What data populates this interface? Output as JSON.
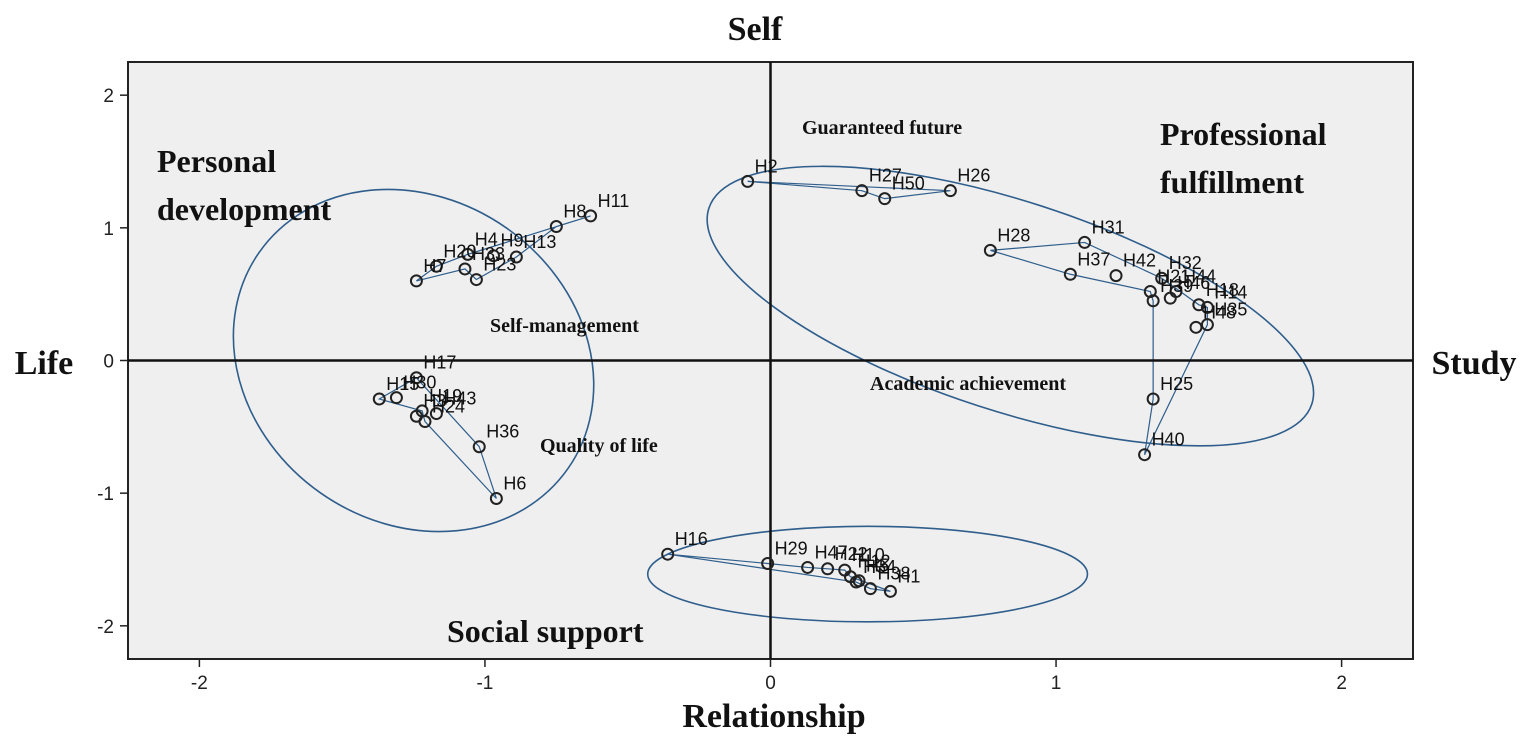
{
  "chart_data": {
    "type": "scatter",
    "xlim": [
      -2.25,
      2.25
    ],
    "ylim": [
      -2.25,
      2.25
    ],
    "x_ticks": [
      -2,
      -1,
      0,
      1,
      2
    ],
    "y_ticks": [
      2,
      1,
      0,
      -1,
      -2
    ],
    "axis_labels": {
      "top": "Self",
      "bottom": "Relationship",
      "left": "Life",
      "right": "Study"
    },
    "group_labels": [
      {
        "text": "Personal development",
        "style": "big"
      },
      {
        "text": "Professional fulfillment",
        "style": "big"
      },
      {
        "text": "Social support",
        "style": "big"
      },
      {
        "text": "Guaranteed future",
        "style": "small"
      },
      {
        "text": "Self-management",
        "style": "small"
      },
      {
        "text": "Academic achievement",
        "style": "small"
      },
      {
        "text": "Quality  of life",
        "style": "small"
      }
    ],
    "points": [
      {
        "label": "H2",
        "x": -0.08,
        "y": 1.35
      },
      {
        "label": "H27",
        "x": 0.32,
        "y": 1.28
      },
      {
        "label": "H50",
        "x": 0.4,
        "y": 1.22
      },
      {
        "label": "H26",
        "x": 0.63,
        "y": 1.28
      },
      {
        "label": "H11",
        "x": -0.63,
        "y": 1.09
      },
      {
        "label": "H8",
        "x": -0.75,
        "y": 1.01
      },
      {
        "label": "H4",
        "x": -1.06,
        "y": 0.8
      },
      {
        "label": "H9",
        "x": -0.97,
        "y": 0.79
      },
      {
        "label": "H20",
        "x": -1.17,
        "y": 0.71
      },
      {
        "label": "H13",
        "x": -0.89,
        "y": 0.78
      },
      {
        "label": "H33",
        "x": -1.07,
        "y": 0.69
      },
      {
        "label": "H23",
        "x": -1.03,
        "y": 0.61
      },
      {
        "label": "H7",
        "x": -1.24,
        "y": 0.6
      },
      {
        "label": "H28",
        "x": 0.77,
        "y": 0.83
      },
      {
        "label": "H31",
        "x": 1.1,
        "y": 0.89
      },
      {
        "label": "H37",
        "x": 1.05,
        "y": 0.65
      },
      {
        "label": "H42",
        "x": 1.21,
        "y": 0.64
      },
      {
        "label": "H32",
        "x": 1.37,
        "y": 0.62
      },
      {
        "label": "H44",
        "x": 1.42,
        "y": 0.52
      },
      {
        "label": "H18",
        "x": 1.5,
        "y": 0.42
      },
      {
        "label": "H21",
        "x": 1.33,
        "y": 0.52
      },
      {
        "label": "H14",
        "x": 1.53,
        "y": 0.4
      },
      {
        "label": "H39",
        "x": 1.34,
        "y": 0.45
      },
      {
        "label": "H46",
        "x": 1.4,
        "y": 0.47
      },
      {
        "label": "H48",
        "x": 1.49,
        "y": 0.25
      },
      {
        "label": "H35",
        "x": 1.53,
        "y": 0.27
      },
      {
        "label": "H25",
        "x": 1.34,
        "y": -0.29
      },
      {
        "label": "H40",
        "x": 1.31,
        "y": -0.71
      },
      {
        "label": "H17",
        "x": -1.24,
        "y": -0.13
      },
      {
        "label": "H15",
        "x": -1.37,
        "y": -0.29
      },
      {
        "label": "H30",
        "x": -1.31,
        "y": -0.28
      },
      {
        "label": "H19",
        "x": -1.22,
        "y": -0.38
      },
      {
        "label": "H43",
        "x": -1.17,
        "y": -0.4
      },
      {
        "label": "H24",
        "x": -1.21,
        "y": -0.46
      },
      {
        "label": "H36",
        "x": -1.02,
        "y": -0.65
      },
      {
        "label": "H3",
        "x": -1.24,
        "y": -0.42
      },
      {
        "label": "H6",
        "x": -0.96,
        "y": -1.04
      },
      {
        "label": "H16",
        "x": -0.36,
        "y": -1.46
      },
      {
        "label": "H29",
        "x": -0.01,
        "y": -1.53
      },
      {
        "label": "H47",
        "x": 0.13,
        "y": -1.56
      },
      {
        "label": "H22",
        "x": 0.2,
        "y": -1.57
      },
      {
        "label": "H10",
        "x": 0.26,
        "y": -1.58
      },
      {
        "label": "H12",
        "x": 0.28,
        "y": -1.63
      },
      {
        "label": "H34",
        "x": 0.3,
        "y": -1.67
      },
      {
        "label": "H38",
        "x": 0.35,
        "y": -1.72
      },
      {
        "label": "H5",
        "x": 0.31,
        "y": -1.66
      },
      {
        "label": "H1",
        "x": 0.42,
        "y": -1.74
      }
    ],
    "hulls": [
      {
        "group": "Guaranteed future",
        "points": [
          "H2",
          "H26",
          "H50",
          "H27"
        ]
      },
      {
        "group": "Self-management",
        "points": [
          "H7",
          "H20",
          "H4",
          "H11",
          "H8",
          "H13",
          "H23",
          "H33"
        ]
      },
      {
        "group": "Academic achievement",
        "points": [
          "H28",
          "H31",
          "H32",
          "H18",
          "H14",
          "H35",
          "H40",
          "H25",
          "H39",
          "H21",
          "H37"
        ]
      },
      {
        "group": "Quality  of life",
        "points": [
          "H15",
          "H17",
          "H36",
          "H6",
          "H24",
          "H19"
        ]
      },
      {
        "group": "Social support",
        "points": [
          "H16",
          "H29",
          "H47",
          "H22",
          "H10",
          "H12",
          "H1",
          "H38",
          "H34"
        ]
      }
    ],
    "ellipses": [
      {
        "group": "Personal development",
        "cx": -1.25,
        "cy": 0.0,
        "rx": 0.66,
        "ry": 1.22,
        "rotate_deg": 35
      },
      {
        "group": "Professional fulfillment",
        "cx": 0.84,
        "cy": 0.41,
        "rx": 1.11,
        "ry": 0.79,
        "rotate_deg": 18
      },
      {
        "group": "Social support",
        "cx": 0.34,
        "cy": -1.61,
        "rx": 0.77,
        "ry": 0.36,
        "rotate_deg": 0
      }
    ]
  }
}
